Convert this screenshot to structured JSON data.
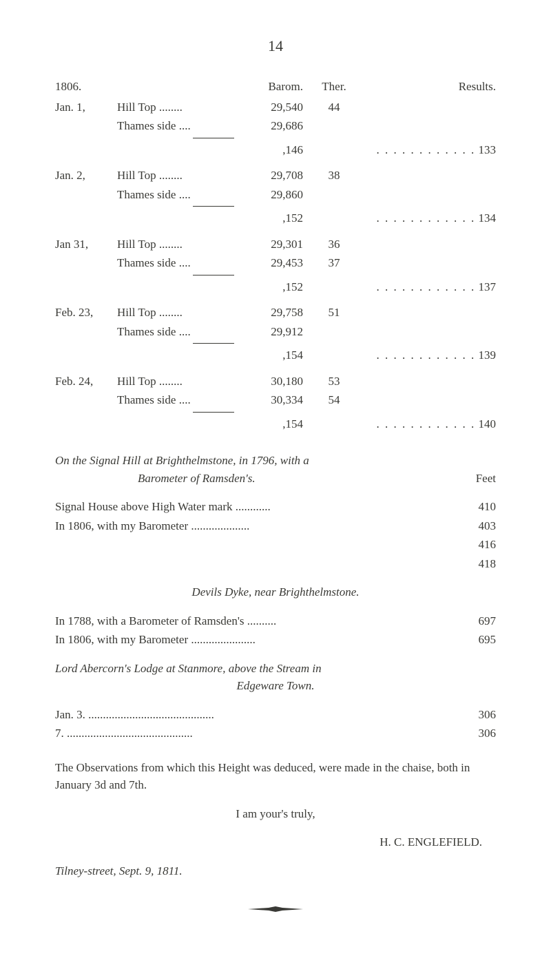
{
  "page_number": "14",
  "header": {
    "year": "1806.",
    "barom": "Barom.",
    "ther": "Ther.",
    "results": "Results."
  },
  "groups": [
    {
      "date": "Jan. 1,",
      "rows": [
        {
          "desc": "Hill Top ........",
          "val": "29,540",
          "th": "44"
        },
        {
          "desc": "Thames side ....",
          "val": "29,686",
          "th": ""
        }
      ],
      "diff": ",146",
      "result": "133"
    },
    {
      "date": "Jan. 2,",
      "rows": [
        {
          "desc": "Hill Top ........",
          "val": "29,708",
          "th": "38"
        },
        {
          "desc": "Thames side ....",
          "val": "29,860",
          "th": ""
        }
      ],
      "diff": ",152",
      "result": "134"
    },
    {
      "date": "Jan 31,",
      "rows": [
        {
          "desc": "Hill Top ........",
          "val": "29,301",
          "th": "36"
        },
        {
          "desc": "Thames side ....",
          "val": "29,453",
          "th": "37"
        }
      ],
      "diff": ",152",
      "result": "137"
    },
    {
      "date": "Feb. 23,",
      "rows": [
        {
          "desc": "Hill Top ........",
          "val": "29,758",
          "th": "51"
        },
        {
          "desc": "Thames side ....",
          "val": "29,912",
          "th": ""
        }
      ],
      "diff": ",154",
      "result": "139"
    },
    {
      "date": "Feb. 24,",
      "rows": [
        {
          "desc": "Hill Top ........",
          "val": "30,180",
          "th": "53"
        },
        {
          "desc": "Thames side ....",
          "val": "30,334",
          "th": "54"
        }
      ],
      "diff": ",154",
      "result": "140"
    }
  ],
  "dots_long": ". . . . . . . . . . . .",
  "essay": {
    "title1a": "On the Signal Hill at Brighthelmstone, in 1796, with a",
    "title1b": "Barometer of Ramsden's.",
    "feet": "Feet",
    "lines": [
      {
        "text": "Signal House above High Water mark ............",
        "val": "410"
      },
      {
        "text": "In 1806, with my Barometer ....................",
        "val": "403"
      },
      {
        "text": "",
        "val": "416"
      },
      {
        "text": "",
        "val": "418"
      }
    ],
    "title2": "Devils Dyke, near Brighthelmstone.",
    "lines2": [
      {
        "text": "In 1788, with a Barometer of Ramsden's ..........",
        "val": "697"
      },
      {
        "text": "In 1806, with my Barometer ......................",
        "val": "695"
      }
    ],
    "title3a": "Lord Abercorn's Lodge at Stanmore, above the Stream in",
    "title3b": "Edgeware Town.",
    "lines3": [
      {
        "text": "Jan. 3. ...........................................",
        "val": "306"
      },
      {
        "text": "7. ...........................................",
        "val": "306"
      }
    ]
  },
  "closing": {
    "p1": "The Observations from which this Height was deduced, were made in the chaise, both in January 3d and 7th.",
    "p2": "I am your's truly,",
    "sig": "H. C. ENGLEFIELD.",
    "loc": "Tilney-street, Sept. 9, 1811."
  }
}
